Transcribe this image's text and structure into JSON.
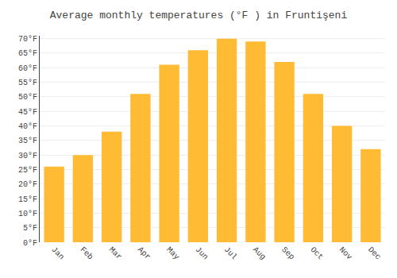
{
  "chart_data": {
    "type": "bar",
    "title": "Average monthly temperatures (°F ) in Fruntişeni",
    "categories": [
      "Jan",
      "Feb",
      "Mar",
      "Apr",
      "May",
      "Jun",
      "Jul",
      "Aug",
      "Sep",
      "Oct",
      "Nov",
      "Dec"
    ],
    "values": [
      26,
      30,
      38,
      51,
      61,
      66,
      70,
      69,
      62,
      51,
      40,
      32
    ],
    "color": "#FFBB33",
    "ylim": [
      0,
      71
    ],
    "yticks": [
      {
        "value": 0,
        "label": "0°F"
      },
      {
        "value": 5,
        "label": "5°F"
      },
      {
        "value": 10,
        "label": "10°F"
      },
      {
        "value": 15,
        "label": "15°F"
      },
      {
        "value": 20,
        "label": "20°F"
      },
      {
        "value": 25,
        "label": "25°F"
      },
      {
        "value": 30,
        "label": "30°F"
      },
      {
        "value": 35,
        "label": "35°F"
      },
      {
        "value": 40,
        "label": "40°F"
      },
      {
        "value": 45,
        "label": "45°F"
      },
      {
        "value": 50,
        "label": "50°F"
      },
      {
        "value": 55,
        "label": "55°F"
      },
      {
        "value": 60,
        "label": "60°F"
      },
      {
        "value": 65,
        "label": "65°F"
      },
      {
        "value": 70,
        "label": "70°F"
      }
    ],
    "grid": true
  }
}
